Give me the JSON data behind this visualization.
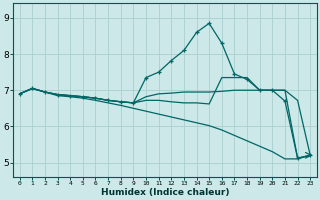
{
  "background_color": "#cce8e8",
  "grid_color": "#aacfcf",
  "line_color": "#006666",
  "xlabel": "Humidex (Indice chaleur)",
  "xlim": [
    -0.5,
    23.5
  ],
  "ylim": [
    4.6,
    9.4
  ],
  "yticks": [
    5,
    6,
    7,
    8,
    9
  ],
  "xticks": [
    0,
    1,
    2,
    3,
    4,
    5,
    6,
    7,
    8,
    9,
    10,
    11,
    12,
    13,
    14,
    15,
    16,
    17,
    18,
    19,
    20,
    21,
    22,
    23
  ],
  "lines": [
    {
      "x": [
        0,
        1,
        2,
        3,
        4,
        5,
        6,
        7,
        8,
        9,
        10,
        11,
        12,
        13,
        14,
        15,
        16,
        17,
        18,
        19,
        20,
        21,
        22,
        23
      ],
      "y": [
        6.9,
        7.05,
        6.95,
        6.85,
        6.82,
        6.78,
        6.72,
        6.65,
        6.58,
        6.5,
        6.42,
        6.34,
        6.26,
        6.18,
        6.1,
        6.02,
        5.9,
        5.75,
        5.6,
        5.45,
        5.3,
        5.1,
        5.1,
        5.2
      ],
      "marker": false,
      "dashed": false
    },
    {
      "x": [
        0,
        1,
        2,
        3,
        4,
        5,
        6,
        7,
        8,
        9,
        10,
        11,
        12,
        13,
        14,
        15,
        16,
        17,
        18,
        19,
        20,
        21,
        22,
        23
      ],
      "y": [
        6.9,
        7.05,
        6.95,
        6.88,
        6.85,
        6.82,
        6.78,
        6.72,
        6.68,
        6.65,
        6.82,
        6.9,
        6.92,
        6.95,
        6.95,
        6.95,
        6.97,
        7.0,
        7.0,
        7.0,
        7.0,
        7.0,
        6.72,
        5.2
      ],
      "marker": false,
      "dashed": false
    },
    {
      "x": [
        0,
        1,
        2,
        3,
        4,
        5,
        6,
        7,
        8,
        9,
        10,
        11,
        12,
        13,
        14,
        15,
        16,
        17,
        18,
        19,
        20,
        21,
        22,
        23
      ],
      "y": [
        6.9,
        7.05,
        6.95,
        6.88,
        6.85,
        6.82,
        6.78,
        6.72,
        6.68,
        6.65,
        7.35,
        7.5,
        7.82,
        8.1,
        8.6,
        8.85,
        8.3,
        7.45,
        7.3,
        7.0,
        7.0,
        6.7,
        5.12,
        5.2
      ],
      "marker": true,
      "dashed": false
    },
    {
      "x": [
        0,
        1,
        2,
        3,
        4,
        5,
        6,
        7,
        8,
        9,
        10,
        11,
        12,
        13,
        14,
        15,
        16,
        17,
        18,
        19,
        20,
        21,
        22,
        23
      ],
      "y": [
        6.9,
        7.05,
        6.95,
        6.88,
        6.85,
        6.82,
        6.78,
        6.72,
        6.68,
        6.65,
        6.72,
        6.72,
        6.68,
        6.65,
        6.65,
        6.62,
        7.35,
        7.35,
        7.35,
        7.0,
        7.0,
        7.0,
        5.12,
        5.2
      ],
      "marker": false,
      "dashed": false
    }
  ]
}
